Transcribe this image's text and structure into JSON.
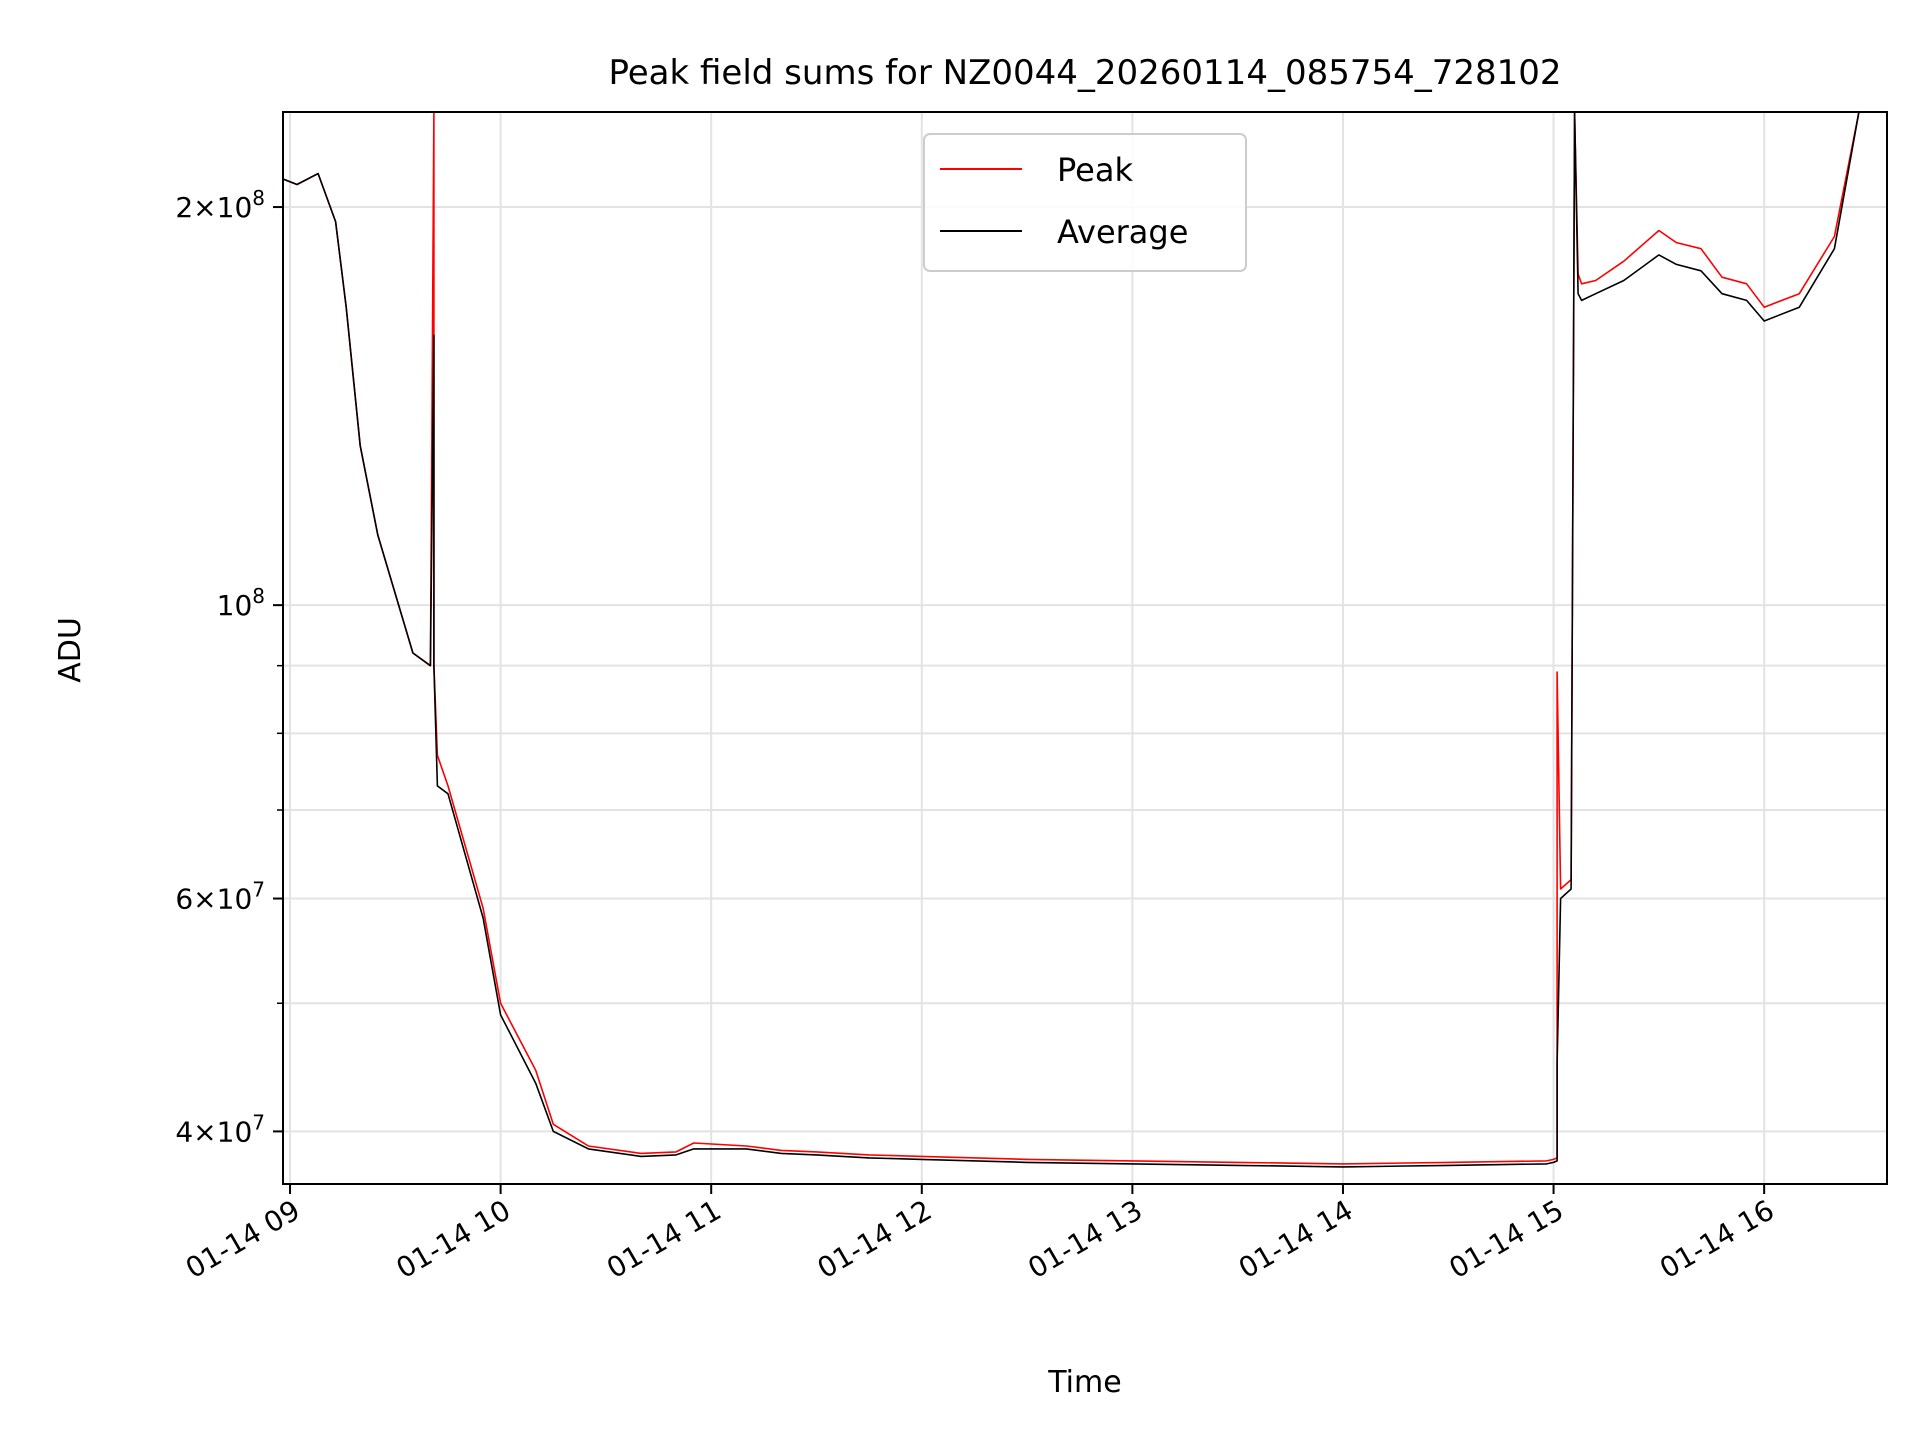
{
  "chart_data": {
    "type": "line",
    "title": "Peak field sums for NZ0044_20260114_085754_728102",
    "xlabel": "Time",
    "ylabel": "ADU",
    "yscale": "log",
    "xlim": [
      "2026-01-14 08:58",
      "2026-01-14 16:35"
    ],
    "ylim": [
      36500000,
      236000000
    ],
    "grid": true,
    "legend_position": "top-center",
    "x_ticks": [
      "01-14 09",
      "01-14 10",
      "01-14 11",
      "01-14 12",
      "01-14 13",
      "01-14 14",
      "01-14 15",
      "01-14 16"
    ],
    "y_ticks": [
      {
        "value": 40000000,
        "base": "4",
        "exp": "7"
      },
      {
        "value": 60000000,
        "base": "6",
        "exp": "7"
      },
      {
        "value": 100000000,
        "base": "",
        "exp": "8"
      },
      {
        "value": 200000000,
        "base": "2",
        "exp": "8"
      }
    ],
    "series": [
      {
        "name": "Peak",
        "color": "#ff0000",
        "x": [
          "2026-01-14 08:58",
          "2026-01-14 09:02",
          "2026-01-14 09:08",
          "2026-01-14 09:13",
          "2026-01-14 09:16",
          "2026-01-14 09:20",
          "2026-01-14 09:25",
          "2026-01-14 09:35",
          "2026-01-14 09:40",
          "2026-01-14 09:41",
          "2026-01-14 09:41",
          "2026-01-14 09:42",
          "2026-01-14 09:45",
          "2026-01-14 09:55",
          "2026-01-14 10:00",
          "2026-01-14 10:10",
          "2026-01-14 10:15",
          "2026-01-14 10:25",
          "2026-01-14 10:40",
          "2026-01-14 10:50",
          "2026-01-14 10:55",
          "2026-01-14 11:10",
          "2026-01-14 11:20",
          "2026-01-14 11:30",
          "2026-01-14 11:45",
          "2026-01-14 12:00",
          "2026-01-14 12:30",
          "2026-01-14 13:00",
          "2026-01-14 13:30",
          "2026-01-14 14:00",
          "2026-01-14 14:30",
          "2026-01-14 14:58",
          "2026-01-14 15:00",
          "2026-01-14 15:01",
          "2026-01-14 15:01",
          "2026-01-14 15:02",
          "2026-01-14 15:05",
          "2026-01-14 15:06",
          "2026-01-14 15:07",
          "2026-01-14 15:08",
          "2026-01-14 15:12",
          "2026-01-14 15:20",
          "2026-01-14 15:30",
          "2026-01-14 15:35",
          "2026-01-14 15:42",
          "2026-01-14 15:48",
          "2026-01-14 15:55",
          "2026-01-14 16:00",
          "2026-01-14 16:10",
          "2026-01-14 16:20",
          "2026-01-14 16:27"
        ],
        "y": [
          210000000,
          208000000,
          212000000,
          195000000,
          168000000,
          132000000,
          113000000,
          92000000,
          90000000,
          236000000,
          90000000,
          77000000,
          73000000,
          59000000,
          50000000,
          44500000,
          40500000,
          39000000,
          38500000,
          38600000,
          39200000,
          39000000,
          38700000,
          38600000,
          38400000,
          38300000,
          38100000,
          38000000,
          37900000,
          37800000,
          37900000,
          38000000,
          38100000,
          38200000,
          89000000,
          61000000,
          62000000,
          236000000,
          178000000,
          175000000,
          176000000,
          182000000,
          192000000,
          188000000,
          186000000,
          177000000,
          175000000,
          168000000,
          172000000,
          190000000,
          236000000
        ]
      },
      {
        "name": "Average",
        "color": "#000000",
        "x": [
          "2026-01-14 08:58",
          "2026-01-14 09:02",
          "2026-01-14 09:08",
          "2026-01-14 09:13",
          "2026-01-14 09:16",
          "2026-01-14 09:20",
          "2026-01-14 09:25",
          "2026-01-14 09:35",
          "2026-01-14 09:40",
          "2026-01-14 09:41",
          "2026-01-14 09:41",
          "2026-01-14 09:42",
          "2026-01-14 09:45",
          "2026-01-14 09:55",
          "2026-01-14 10:00",
          "2026-01-14 10:10",
          "2026-01-14 10:15",
          "2026-01-14 10:25",
          "2026-01-14 10:40",
          "2026-01-14 10:50",
          "2026-01-14 10:55",
          "2026-01-14 11:10",
          "2026-01-14 11:20",
          "2026-01-14 11:30",
          "2026-01-14 11:45",
          "2026-01-14 12:00",
          "2026-01-14 12:30",
          "2026-01-14 13:00",
          "2026-01-14 13:30",
          "2026-01-14 14:00",
          "2026-01-14 14:30",
          "2026-01-14 14:58",
          "2026-01-14 15:00",
          "2026-01-14 15:01",
          "2026-01-14 15:01",
          "2026-01-14 15:02",
          "2026-01-14 15:05",
          "2026-01-14 15:06",
          "2026-01-14 15:07",
          "2026-01-14 15:08",
          "2026-01-14 15:12",
          "2026-01-14 15:20",
          "2026-01-14 15:30",
          "2026-01-14 15:35",
          "2026-01-14 15:42",
          "2026-01-14 15:48",
          "2026-01-14 15:55",
          "2026-01-14 16:00",
          "2026-01-14 16:10",
          "2026-01-14 16:20",
          "2026-01-14 16:27"
        ],
        "y": [
          210000000,
          208000000,
          212000000,
          195000000,
          168000000,
          132000000,
          113000000,
          92000000,
          90000000,
          160000000,
          90000000,
          73000000,
          72000000,
          58000000,
          49000000,
          43500000,
          40000000,
          38800000,
          38300000,
          38400000,
          38800000,
          38800000,
          38500000,
          38400000,
          38200000,
          38100000,
          37900000,
          37800000,
          37700000,
          37600000,
          37700000,
          37800000,
          37900000,
          38000000,
          45000000,
          60000000,
          61000000,
          236000000,
          172000000,
          170000000,
          172000000,
          176000000,
          184000000,
          181000000,
          179000000,
          172000000,
          170000000,
          164000000,
          168000000,
          186000000,
          236000000
        ]
      }
    ]
  }
}
